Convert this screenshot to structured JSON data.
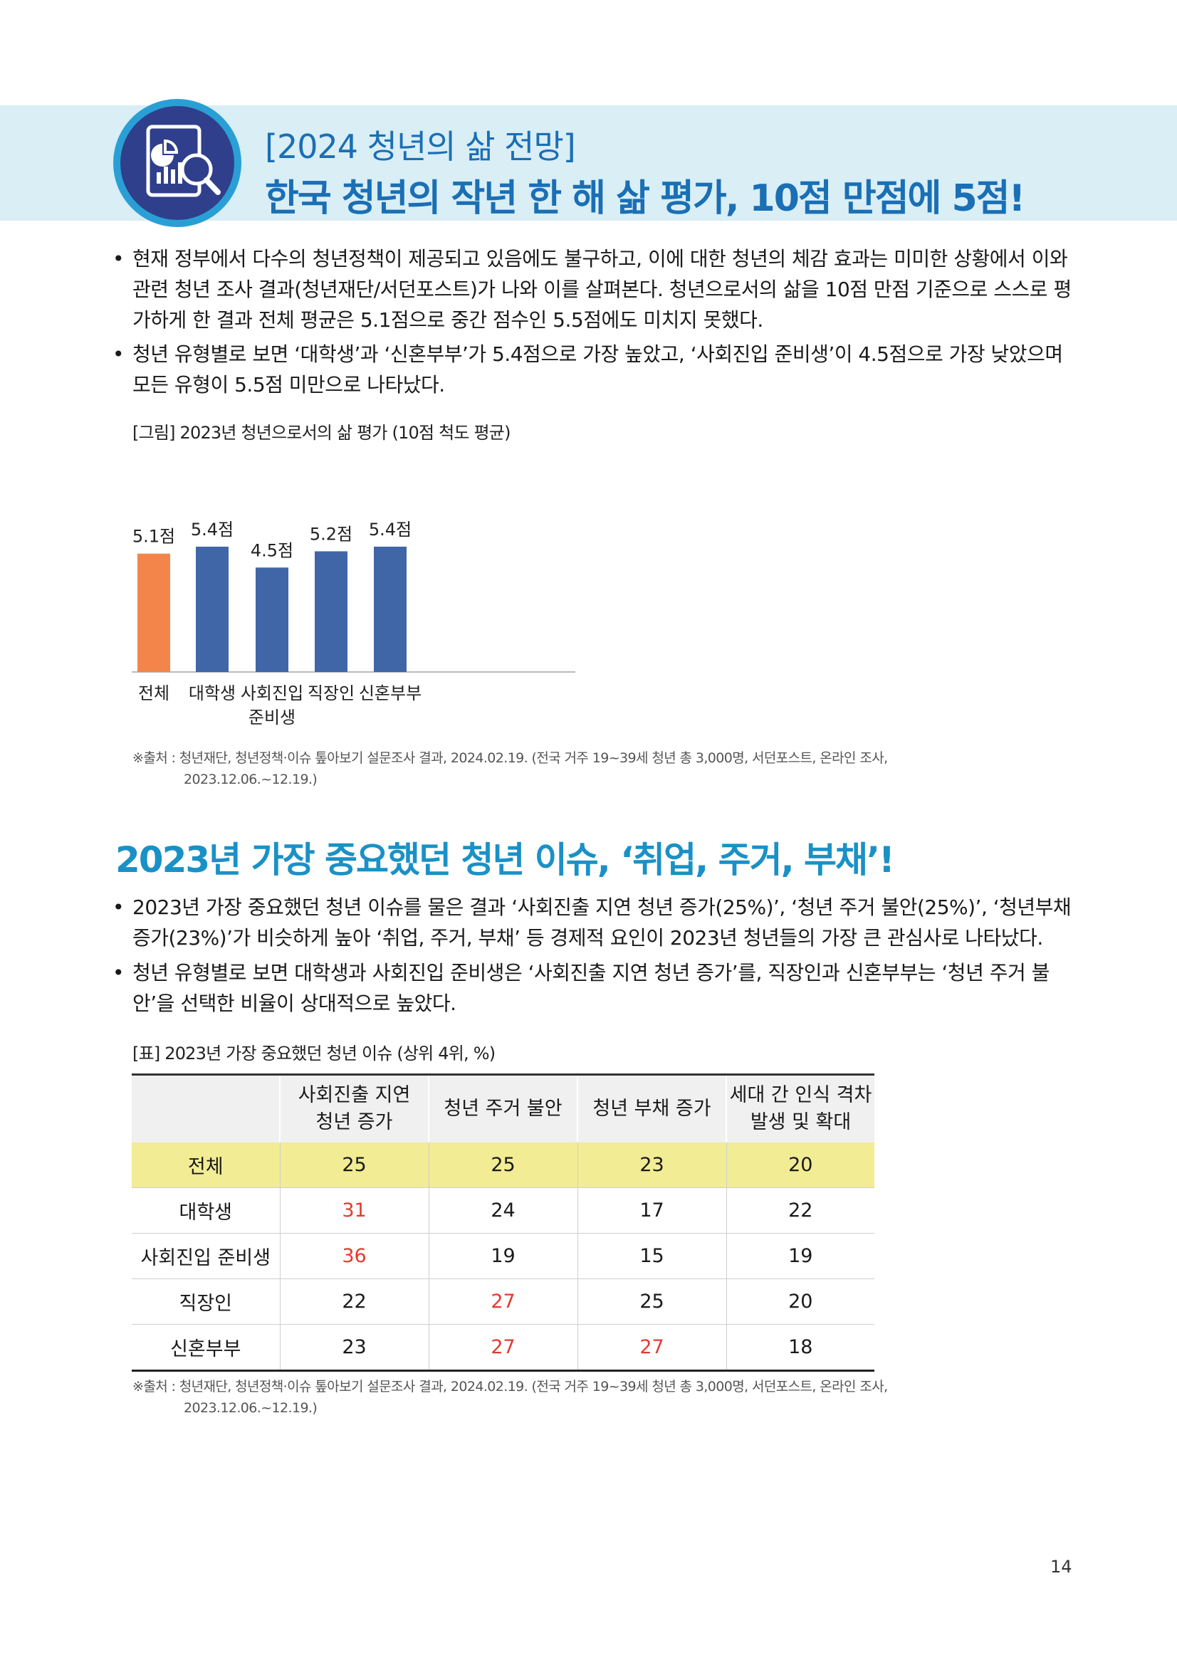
{
  "header": {
    "title_line1": "[2024 청년의 삶 전망]",
    "title_line2": "한국 청년의 작년 한 해 삶 평가, 10점 만점에 5점!",
    "icon": "report-magnifier-icon"
  },
  "section1": {
    "bullets": [
      "현재 정부에서 다수의 청년정책이 제공되고 있음에도 불구하고, 이에 대한 청년의 체감 효과는 미미한 상황에서 이와 관련 청년 조사 결과(청년재단/서던포스트)가 나와 이를 살펴본다. 청년으로서의 삶을 10점 만점 기준으로 스스로 평가하게 한 결과 전체 평균은 5.1점으로 중간 점수인 5.5점에도 미치지 못했다.",
      "청년 유형별로 보면 ‘대학생’과 ‘신혼부부’가 5.4점으로 가장 높았고, ‘사회진입 준비생’이 4.5점으로 가장 낮았으며 모든 유형이 5.5점 미만으로 나타났다."
    ],
    "figure_caption": "[그림] 2023년 청년으로서의 삶 평가 (10점 척도 평균)",
    "source_line1": "※출처 : 청년재단, 청년정책·이슈 톺아보기 설문조사 결과, 2024.02.19. (전국 거주 19~39세 청년 총 3,000명, 서던포스트, 온라인 조사,",
    "source_line2": "2023.12.06.~12.19.)"
  },
  "chart_data": {
    "type": "bar",
    "categories": [
      "전체",
      "대학생",
      "사회진입\n준비생",
      "직장인",
      "신혼부부"
    ],
    "values": [
      5.1,
      5.4,
      4.5,
      5.2,
      5.4
    ],
    "value_labels": [
      "5.1점",
      "5.4점",
      "4.5점",
      "5.2점",
      "5.4점"
    ],
    "title": "",
    "colors": [
      "#f4854a",
      "#4066a8",
      "#4066a8",
      "#4066a8",
      "#4066a8"
    ],
    "grid": false
  },
  "section2": {
    "title": "2023년 가장 중요했던 청년 이슈, ‘취업, 주거, 부채’!",
    "bullets": [
      "2023년 가장 중요했던 청년 이슈를 물은 결과 ‘사회진출 지연 청년 증가(25%)’, ‘청년 주거 불안(25%)’, ‘청년부채 증가(23%)’가 비슷하게 높아 ‘취업, 주거, 부채’ 등 경제적 요인이 2023년 청년들의 가장 큰 관심사로 나타났다.",
      "청년 유형별로 보면 대학생과 사회진입 준비생은 ‘사회진출 지연 청년 증가’를, 직장인과 신혼부부는 ‘청년 주거 불안’을 선택한 비율이 상대적으로 높았다."
    ],
    "table_caption": "[표] 2023년 가장 중요했던 청년 이슈 (상위 4위, %)",
    "table": {
      "headers": [
        "",
        "사회진출 지연\n청년 증가",
        "청년 주거 불안",
        "청년 부채 증가",
        "세대 간 인식 격차\n발생 및 확대"
      ],
      "rows": [
        {
          "label": "전체",
          "values": [
            "25",
            "25",
            "23",
            "20"
          ]
        },
        {
          "label": "대학생",
          "values": [
            "31",
            "24",
            "17",
            "22"
          ]
        },
        {
          "label": "사회진입 준비생",
          "values": [
            "36",
            "19",
            "15",
            "19"
          ]
        },
        {
          "label": "직장인",
          "values": [
            "22",
            "27",
            "25",
            "20"
          ]
        },
        {
          "label": "신혼부부",
          "values": [
            "23",
            "27",
            "27",
            "18"
          ]
        }
      ],
      "highlight_color": "#f2ec94",
      "emphasis_color": "#e23b2e"
    },
    "source_line1": "※출처 : 청년재단, 청년정책·이슈 톺아보기 설문조사 결과, 2024.02.19. (전국 거주 19~39세 청년 총 3,000명, 서던포스트, 온라인 조사,",
    "source_line2": "2023.12.06.~12.19.)"
  },
  "footer": {
    "page_number": "14"
  }
}
